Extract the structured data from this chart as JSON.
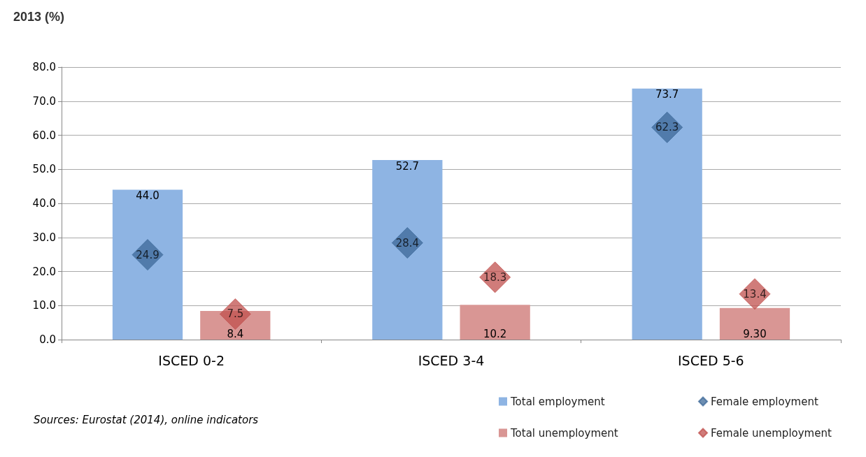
{
  "chart_data": {
    "type": "bar",
    "title": "2013 (%)",
    "categories": [
      "ISCED 0-2",
      "ISCED 3-4",
      "ISCED 5-6"
    ],
    "series": [
      {
        "name": "Total employment",
        "type": "bar",
        "color": "#8eb4e3",
        "values": [
          44.0,
          52.7,
          73.7
        ],
        "value_labels": [
          "44.0",
          "52.7",
          "73.7"
        ]
      },
      {
        "name": "Total unemployment",
        "type": "bar",
        "color": "#d99694",
        "values": [
          8.4,
          10.2,
          9.3
        ],
        "value_labels": [
          "8.4",
          "10.2",
          "9.30"
        ]
      },
      {
        "name": "Female employment",
        "type": "scatter",
        "color": "#3c6898",
        "x": [
          "ISCED 0-2",
          "ISCED 3-4",
          "ISCED 5-6"
        ],
        "values": [
          24.9,
          28.4,
          62.3
        ],
        "value_labels": [
          "24.9",
          "28.4",
          "62.3"
        ]
      },
      {
        "name": "Female unemployment",
        "type": "scatter",
        "color": "#c0504d",
        "x": [
          "ISCED 0-2",
          "ISCED 3-4",
          "ISCED 5-6"
        ],
        "values": [
          7.5,
          18.3,
          13.4
        ],
        "value_labels": [
          "7.5",
          "18.3",
          "13.4"
        ]
      }
    ],
    "ylim": [
      0,
      80
    ],
    "yticks": [
      {
        "value": 0,
        "label": "0.0"
      },
      {
        "value": 10,
        "label": "10.0"
      },
      {
        "value": 20,
        "label": "20.0"
      },
      {
        "value": 30,
        "label": "30.0"
      },
      {
        "value": 40,
        "label": "40.0"
      },
      {
        "value": 50,
        "label": "50.0"
      },
      {
        "value": 60,
        "label": "60.0"
      },
      {
        "value": 70,
        "label": "70.0"
      },
      {
        "value": 80,
        "label": "80.0"
      }
    ],
    "grid": "y",
    "legend": "bottom right",
    "marker": "diamond",
    "annotations": [
      "Sources: Eurostat (2014), online indicators"
    ]
  }
}
